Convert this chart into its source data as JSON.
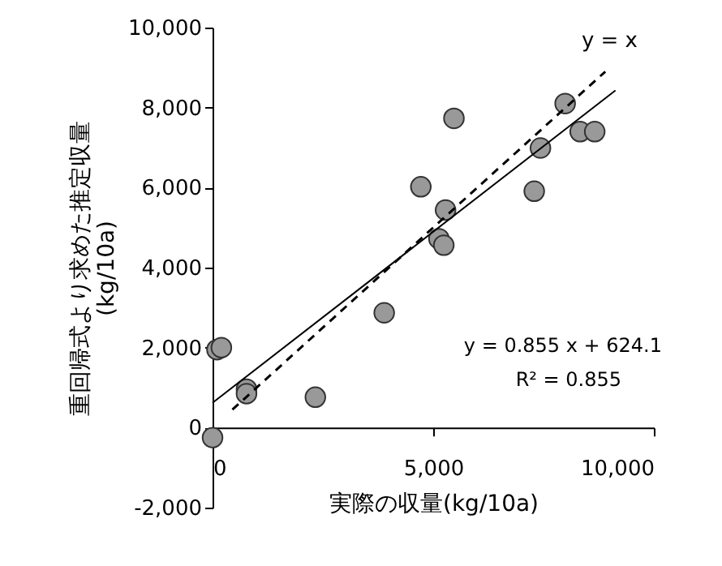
{
  "chart_data": {
    "type": "scatter",
    "xlabel": "実際の収量(kg/10a)",
    "ylabel": "重回帰式より求めた推定収量\n(kg/10a)",
    "series": [
      {
        "color": "#999999",
        "marker": "circle",
        "x": [
          0,
          100,
          200,
          770,
          770,
          2330,
          3890,
          4720,
          5130,
          5240,
          5280,
          5470,
          7290,
          7430,
          7990,
          8330,
          8660
        ],
        "values": [
          -250,
          1950,
          2000,
          960,
          850,
          760,
          2870,
          6020,
          4720,
          4560,
          5440,
          7730,
          5910,
          6990,
          8100,
          7400,
          7400
        ]
      },
      {
        "type": "line",
        "color": "#000000",
        "line_style": "solid",
        "x": [
          0,
          9130
        ],
        "values": [
          620,
          8430
        ]
      },
      {
        "type": "line",
        "color": "#000000",
        "line_style": "dashed",
        "x": [
          450,
          8900
        ],
        "values": [
          450,
          8900
        ]
      }
    ],
    "xlim": [
      0,
      10000
    ],
    "xticks": [
      0,
      {
        "value": 5000,
        "label": "5,000"
      },
      {
        "value": 10000,
        "label": "10,000"
      }
    ],
    "ylim": [
      -2000,
      10000
    ],
    "yticks": [
      {
        "value": -2000,
        "label": "-2,000"
      },
      0,
      {
        "value": 2000,
        "label": "2,000"
      },
      {
        "value": 4000,
        "label": "4,000"
      },
      {
        "value": 6000,
        "label": "6,000"
      },
      {
        "value": 8000,
        "label": "8,000"
      },
      {
        "value": 10000,
        "label": "10,000"
      }
    ],
    "grid": false,
    "annotations": [
      "y = x",
      "y = 0.855 x + 624.1",
      "R² = 0.855"
    ]
  }
}
